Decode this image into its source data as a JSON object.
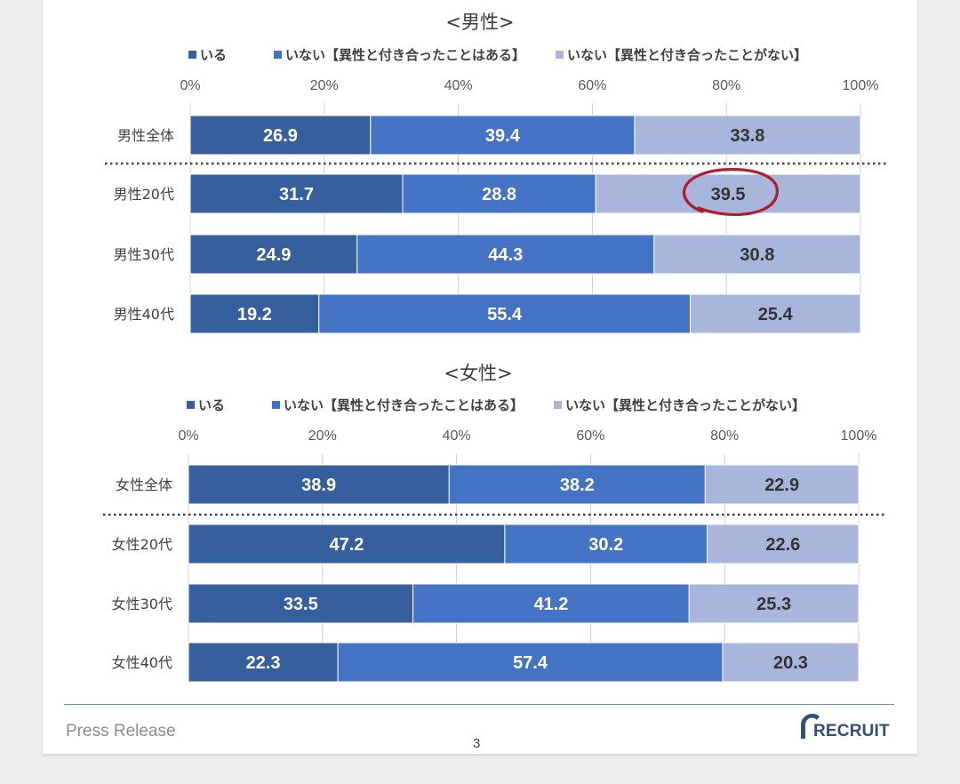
{
  "colors": {
    "series": [
      "#365f9d",
      "#4472c4",
      "#a8b6db"
    ],
    "label_text": [
      "#ffffff",
      "#ffffff",
      "#333333"
    ],
    "grid": "#d0d0d0",
    "separator": "#404040",
    "highlight_circle": "#b01c2e"
  },
  "chart_data": [
    {
      "type": "bar",
      "orientation": "horizontal",
      "stacked": true,
      "title": "<男性>",
      "legend": [
        "いる",
        "いない【異性と付き合ったことはある】",
        "いない【異性と付き合ったことがない】"
      ],
      "legend_position": "top",
      "x_ticks": [
        "0%",
        "20%",
        "40%",
        "60%",
        "80%",
        "100%"
      ],
      "xlim": [
        0,
        100
      ],
      "grid": true,
      "categories": [
        "男性全体",
        "男性20代",
        "男性30代",
        "男性40代"
      ],
      "series": [
        {
          "name": "いる",
          "values": [
            26.9,
            31.7,
            24.9,
            19.2
          ]
        },
        {
          "name": "いない【異性と付き合ったことはある】",
          "values": [
            39.4,
            28.8,
            44.3,
            55.4
          ]
        },
        {
          "name": "いない【異性と付き合ったことがない】",
          "values": [
            33.8,
            39.5,
            30.8,
            25.4
          ]
        }
      ],
      "annotations": [
        "39.5 (男性20代) circled in red"
      ]
    },
    {
      "type": "bar",
      "orientation": "horizontal",
      "stacked": true,
      "title": "<女性>",
      "legend": [
        "いる",
        "いない【異性と付き合ったことはある】",
        "いない【異性と付き合ったことがない】"
      ],
      "legend_position": "top",
      "x_ticks": [
        "0%",
        "20%",
        "40%",
        "60%",
        "80%",
        "100%"
      ],
      "xlim": [
        0,
        100
      ],
      "grid": true,
      "categories": [
        "女性全体",
        "女性20代",
        "女性30代",
        "女性40代"
      ],
      "series": [
        {
          "name": "いる",
          "values": [
            38.9,
            47.2,
            33.5,
            22.3
          ]
        },
        {
          "name": "いない【異性と付き合ったことはある】",
          "values": [
            38.2,
            30.2,
            41.2,
            57.4
          ]
        },
        {
          "name": "いない【異性と付き合ったことがない】",
          "values": [
            22.9,
            22.6,
            25.3,
            20.3
          ]
        }
      ]
    }
  ],
  "footer": {
    "press_release": "Press Release",
    "page_number": "3",
    "logo_text": "RECRUIT"
  }
}
